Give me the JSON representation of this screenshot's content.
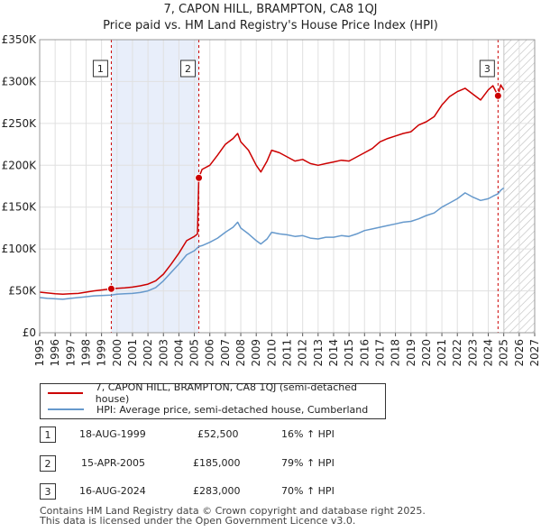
{
  "chart_data": {
    "type": "line",
    "title": "7, CAPON HILL, BRAMPTON, CA8 1QJ",
    "subtitle": "Price paid vs. HM Land Registry's House Price Index (HPI)",
    "ylim": [
      0,
      350000
    ],
    "xlim": [
      1995,
      2027
    ],
    "y_ticks": [
      {
        "value": 0,
        "label": "£0"
      },
      {
        "value": 50000,
        "label": "£50K"
      },
      {
        "value": 100000,
        "label": "£100K"
      },
      {
        "value": 150000,
        "label": "£150K"
      },
      {
        "value": 200000,
        "label": "£200K"
      },
      {
        "value": 250000,
        "label": "£250K"
      },
      {
        "value": 300000,
        "label": "£300K"
      },
      {
        "value": 350000,
        "label": "£350K"
      }
    ],
    "x_ticks": [
      "1995",
      "1996",
      "1997",
      "1998",
      "1999",
      "2000",
      "2001",
      "2002",
      "2003",
      "2004",
      "2005",
      "2006",
      "2007",
      "2008",
      "2009",
      "2010",
      "2011",
      "2012",
      "2013",
      "2014",
      "2015",
      "2016",
      "2017",
      "2018",
      "2019",
      "2020",
      "2021",
      "2022",
      "2023",
      "2024",
      "2025",
      "2026",
      "2027"
    ],
    "shaded_range": [
      1999.63,
      2005.29
    ],
    "future_from": 2025.0,
    "series": [
      {
        "name": "7, CAPON HILL, BRAMPTON, CA8 1QJ (semi-detached house)",
        "color": "#cc0000",
        "points": [
          [
            1995.0,
            48500
          ],
          [
            1995.5,
            47500
          ],
          [
            1996.0,
            46500
          ],
          [
            1996.5,
            46000
          ],
          [
            1997.0,
            46500
          ],
          [
            1997.5,
            47000
          ],
          [
            1998.0,
            48500
          ],
          [
            1998.5,
            50000
          ],
          [
            1999.0,
            51000
          ],
          [
            1999.63,
            52500
          ],
          [
            2000.0,
            53000
          ],
          [
            2000.5,
            53500
          ],
          [
            2001.0,
            54500
          ],
          [
            2001.5,
            56000
          ],
          [
            2002.0,
            58000
          ],
          [
            2002.5,
            62000
          ],
          [
            2003.0,
            70000
          ],
          [
            2003.5,
            82000
          ],
          [
            2004.0,
            95000
          ],
          [
            2004.5,
            110000
          ],
          [
            2005.0,
            115000
          ],
          [
            2005.2,
            118000
          ],
          [
            2005.29,
            185000
          ],
          [
            2005.5,
            195000
          ],
          [
            2006.0,
            200000
          ],
          [
            2006.5,
            212000
          ],
          [
            2007.0,
            225000
          ],
          [
            2007.5,
            232000
          ],
          [
            2007.8,
            238000
          ],
          [
            2008.0,
            228000
          ],
          [
            2008.5,
            218000
          ],
          [
            2009.0,
            200000
          ],
          [
            2009.3,
            192000
          ],
          [
            2009.7,
            205000
          ],
          [
            2010.0,
            218000
          ],
          [
            2010.5,
            215000
          ],
          [
            2011.0,
            210000
          ],
          [
            2011.5,
            205000
          ],
          [
            2012.0,
            207000
          ],
          [
            2012.5,
            202000
          ],
          [
            2013.0,
            200000
          ],
          [
            2013.5,
            202000
          ],
          [
            2014.0,
            204000
          ],
          [
            2014.5,
            206000
          ],
          [
            2015.0,
            205000
          ],
          [
            2015.5,
            210000
          ],
          [
            2016.0,
            215000
          ],
          [
            2016.5,
            220000
          ],
          [
            2017.0,
            228000
          ],
          [
            2017.5,
            232000
          ],
          [
            2018.0,
            235000
          ],
          [
            2018.5,
            238000
          ],
          [
            2019.0,
            240000
          ],
          [
            2019.5,
            248000
          ],
          [
            2020.0,
            252000
          ],
          [
            2020.5,
            258000
          ],
          [
            2021.0,
            272000
          ],
          [
            2021.5,
            282000
          ],
          [
            2022.0,
            288000
          ],
          [
            2022.5,
            292000
          ],
          [
            2023.0,
            285000
          ],
          [
            2023.5,
            278000
          ],
          [
            2024.0,
            290000
          ],
          [
            2024.3,
            295000
          ],
          [
            2024.63,
            283000
          ],
          [
            2024.8,
            296000
          ],
          [
            2025.0,
            290000
          ]
        ]
      },
      {
        "name": "HPI: Average price, semi-detached house, Cumberland",
        "color": "#6699cc",
        "points": [
          [
            1995.0,
            42000
          ],
          [
            1995.5,
            41000
          ],
          [
            1996.0,
            40500
          ],
          [
            1996.5,
            40000
          ],
          [
            1997.0,
            41000
          ],
          [
            1997.5,
            42000
          ],
          [
            1998.0,
            43000
          ],
          [
            1998.5,
            44000
          ],
          [
            1999.0,
            44500
          ],
          [
            1999.63,
            45000
          ],
          [
            2000.0,
            46000
          ],
          [
            2000.5,
            46500
          ],
          [
            2001.0,
            47000
          ],
          [
            2001.5,
            48000
          ],
          [
            2002.0,
            50000
          ],
          [
            2002.5,
            54000
          ],
          [
            2003.0,
            62000
          ],
          [
            2003.5,
            72000
          ],
          [
            2004.0,
            82000
          ],
          [
            2004.5,
            93000
          ],
          [
            2005.0,
            98000
          ],
          [
            2005.29,
            103000
          ],
          [
            2005.5,
            104000
          ],
          [
            2006.0,
            108000
          ],
          [
            2006.5,
            113000
          ],
          [
            2007.0,
            120000
          ],
          [
            2007.5,
            126000
          ],
          [
            2007.8,
            132000
          ],
          [
            2008.0,
            125000
          ],
          [
            2008.5,
            118000
          ],
          [
            2009.0,
            110000
          ],
          [
            2009.3,
            106000
          ],
          [
            2009.7,
            112000
          ],
          [
            2010.0,
            120000
          ],
          [
            2010.5,
            118000
          ],
          [
            2011.0,
            117000
          ],
          [
            2011.5,
            115000
          ],
          [
            2012.0,
            116000
          ],
          [
            2012.5,
            113000
          ],
          [
            2013.0,
            112000
          ],
          [
            2013.5,
            114000
          ],
          [
            2014.0,
            114000
          ],
          [
            2014.5,
            116000
          ],
          [
            2015.0,
            115000
          ],
          [
            2015.5,
            118000
          ],
          [
            2016.0,
            122000
          ],
          [
            2016.5,
            124000
          ],
          [
            2017.0,
            126000
          ],
          [
            2017.5,
            128000
          ],
          [
            2018.0,
            130000
          ],
          [
            2018.5,
            132000
          ],
          [
            2019.0,
            133000
          ],
          [
            2019.5,
            136000
          ],
          [
            2020.0,
            140000
          ],
          [
            2020.5,
            143000
          ],
          [
            2021.0,
            150000
          ],
          [
            2021.5,
            155000
          ],
          [
            2022.0,
            160000
          ],
          [
            2022.5,
            167000
          ],
          [
            2023.0,
            162000
          ],
          [
            2023.5,
            158000
          ],
          [
            2024.0,
            160000
          ],
          [
            2024.3,
            163000
          ],
          [
            2024.63,
            166000
          ],
          [
            2024.8,
            170000
          ],
          [
            2025.0,
            173000
          ]
        ]
      }
    ],
    "markers": [
      {
        "label": "1",
        "x": 1999.63,
        "y": 52500
      },
      {
        "label": "2",
        "x": 2005.29,
        "y": 185000
      },
      {
        "label": "3",
        "x": 2024.63,
        "y": 283000
      }
    ]
  },
  "legend": {
    "red": "7, CAPON HILL, BRAMPTON, CA8 1QJ (semi-detached house)",
    "blue": "HPI: Average price, semi-detached house, Cumberland"
  },
  "transactions": [
    {
      "num": "1",
      "date": "18-AUG-1999",
      "price": "£52,500",
      "hpi": "16% ↑ HPI"
    },
    {
      "num": "2",
      "date": "15-APR-2005",
      "price": "£185,000",
      "hpi": "79% ↑ HPI"
    },
    {
      "num": "3",
      "date": "16-AUG-2024",
      "price": "£283,000",
      "hpi": "70% ↑ HPI"
    }
  ],
  "footer": {
    "line1": "Contains HM Land Registry data © Crown copyright and database right 2025.",
    "line2": "This data is licensed under the Open Government Licence v3.0."
  }
}
